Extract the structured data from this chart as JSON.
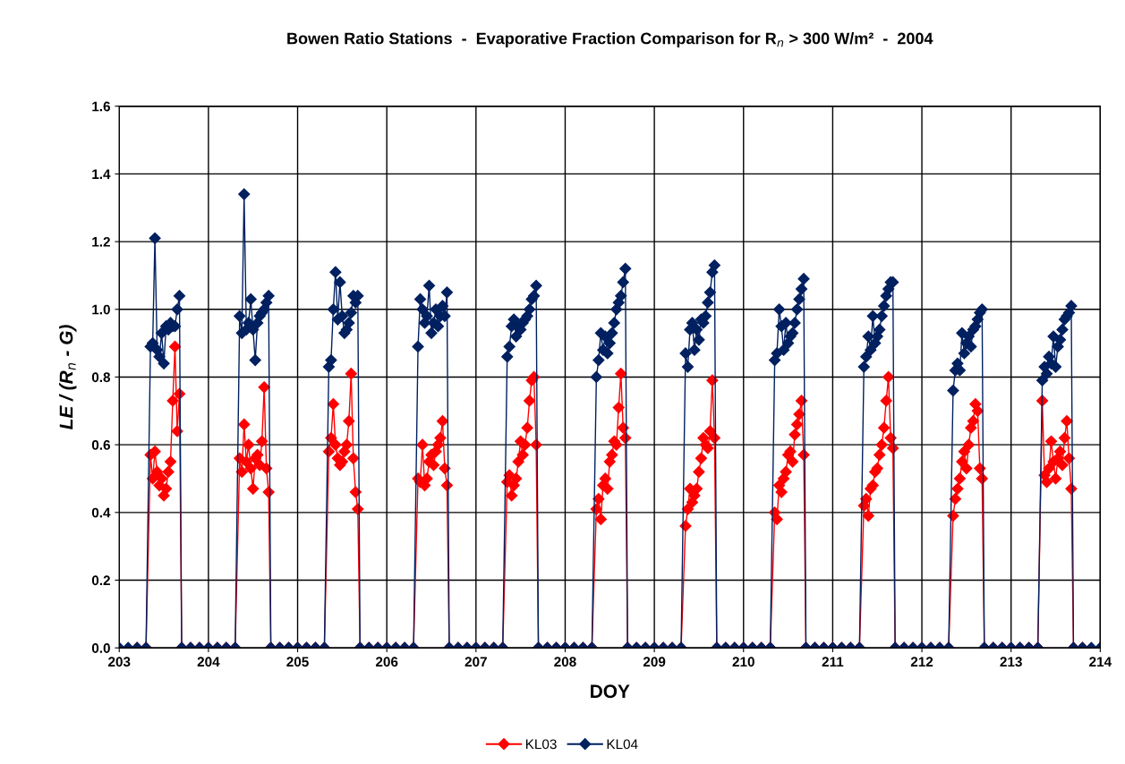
{
  "chart_data": {
    "type": "line",
    "title": "Bowen Ratio Stations  -  Evaporative Fraction Comparison for R$_{n}$ > 300 W/m²  -  2004",
    "xlabel": "DOY",
    "ylabel": "LE / (R$_{n}$ - G)",
    "x": [
      203.0,
      203.1,
      203.2,
      203.3,
      203.35,
      203.375,
      203.4,
      203.425,
      203.45,
      203.475,
      203.5,
      203.525,
      203.55,
      203.575,
      203.6,
      203.625,
      203.65,
      203.675,
      203.7,
      203.8,
      203.9,
      204.0,
      204.1,
      204.2,
      204.3,
      204.35,
      204.375,
      204.4,
      204.425,
      204.45,
      204.475,
      204.5,
      204.525,
      204.55,
      204.575,
      204.6,
      204.625,
      204.65,
      204.675,
      204.7,
      204.8,
      204.9,
      205.0,
      205.1,
      205.2,
      205.3,
      205.35,
      205.375,
      205.4,
      205.425,
      205.45,
      205.475,
      205.5,
      205.525,
      205.55,
      205.575,
      205.6,
      205.625,
      205.65,
      205.675,
      205.7,
      205.8,
      205.9,
      206.0,
      206.1,
      206.2,
      206.3,
      206.35,
      206.375,
      206.4,
      206.425,
      206.45,
      206.475,
      206.5,
      206.525,
      206.55,
      206.575,
      206.6,
      206.625,
      206.65,
      206.675,
      206.7,
      206.8,
      206.9,
      207.0,
      207.1,
      207.2,
      207.3,
      207.35,
      207.375,
      207.4,
      207.425,
      207.45,
      207.475,
      207.5,
      207.525,
      207.55,
      207.575,
      207.6,
      207.625,
      207.65,
      207.675,
      207.7,
      207.8,
      207.9,
      208.0,
      208.1,
      208.2,
      208.3,
      208.35,
      208.375,
      208.4,
      208.425,
      208.45,
      208.475,
      208.5,
      208.525,
      208.55,
      208.575,
      208.6,
      208.625,
      208.65,
      208.675,
      208.7,
      208.8,
      208.9,
      209.0,
      209.1,
      209.2,
      209.3,
      209.35,
      209.375,
      209.4,
      209.425,
      209.45,
      209.475,
      209.5,
      209.525,
      209.55,
      209.575,
      209.6,
      209.625,
      209.65,
      209.675,
      209.7,
      209.8,
      209.9,
      210.0,
      210.1,
      210.2,
      210.3,
      210.35,
      210.375,
      210.4,
      210.425,
      210.45,
      210.475,
      210.5,
      210.525,
      210.55,
      210.575,
      210.6,
      210.625,
      210.65,
      210.675,
      210.7,
      210.8,
      210.9,
      211.0,
      211.1,
      211.2,
      211.3,
      211.35,
      211.375,
      211.4,
      211.425,
      211.45,
      211.475,
      211.5,
      211.525,
      211.55,
      211.575,
      211.6,
      211.625,
      211.65,
      211.675,
      211.7,
      211.8,
      211.9,
      212.0,
      212.1,
      212.2,
      212.3,
      212.35,
      212.375,
      212.4,
      212.425,
      212.45,
      212.475,
      212.5,
      212.525,
      212.55,
      212.575,
      212.6,
      212.625,
      212.65,
      212.675,
      212.7,
      212.8,
      212.9,
      213.0,
      213.1,
      213.2,
      213.3,
      213.35,
      213.375,
      213.4,
      213.425,
      213.45,
      213.475,
      213.5,
      213.525,
      213.55,
      213.575,
      213.6,
      213.625,
      213.65,
      213.675,
      213.7,
      213.8,
      213.9,
      214.0
    ],
    "series": [
      {
        "name": "KL03",
        "color": "#ff0000",
        "values": [
          null,
          null,
          0,
          0,
          0.57,
          0.5,
          0.58,
          0.52,
          0.48,
          0.5,
          0.45,
          0.47,
          0.52,
          0.55,
          0.73,
          0.89,
          0.64,
          0.75,
          0,
          0,
          0,
          0,
          0,
          0,
          0,
          0.56,
          0.52,
          0.66,
          0.55,
          0.6,
          0.53,
          0.47,
          0.56,
          0.57,
          0.54,
          0.61,
          0.77,
          0.53,
          0.46,
          0,
          0,
          0,
          0,
          0,
          0,
          0,
          0.58,
          0.62,
          0.72,
          0.6,
          0.56,
          0.54,
          0.55,
          0.58,
          0.6,
          0.67,
          0.81,
          0.56,
          0.46,
          0.41,
          0,
          0,
          0,
          0,
          0,
          0,
          0,
          0.5,
          0.49,
          0.6,
          0.48,
          0.5,
          0.55,
          0.57,
          0.54,
          0.58,
          0.6,
          0.62,
          0.67,
          0.53,
          0.48,
          0,
          0,
          0,
          0,
          0,
          0,
          0,
          0.49,
          0.51,
          0.45,
          0.48,
          0.5,
          0.55,
          0.61,
          0.57,
          0.6,
          0.65,
          0.73,
          0.79,
          0.8,
          0.6,
          0,
          0,
          0,
          0,
          0,
          0,
          0,
          0.41,
          0.44,
          0.38,
          0.48,
          0.5,
          0.47,
          0.55,
          0.57,
          0.61,
          0.6,
          0.71,
          0.81,
          0.65,
          0.62,
          0,
          0,
          0,
          0,
          0,
          0,
          0,
          0.36,
          0.41,
          0.47,
          0.43,
          0.45,
          0.47,
          0.52,
          0.56,
          0.62,
          0.6,
          0.59,
          0.64,
          0.79,
          0.62,
          0,
          0,
          0,
          0,
          0,
          0,
          0,
          0.4,
          0.38,
          0.48,
          0.46,
          0.5,
          0.52,
          0.57,
          0.58,
          0.55,
          0.63,
          0.66,
          0.69,
          0.73,
          0.57,
          0,
          0,
          0,
          0,
          0,
          0,
          0,
          0.42,
          0.44,
          0.39,
          0.47,
          0.48,
          0.52,
          0.53,
          0.57,
          0.6,
          0.65,
          0.73,
          0.8,
          0.62,
          0.59,
          0,
          0,
          0,
          0,
          0,
          0,
          0,
          0.39,
          0.44,
          0.47,
          0.5,
          0.55,
          0.58,
          0.53,
          0.6,
          0.65,
          0.67,
          0.72,
          0.7,
          0.53,
          0.5,
          0,
          0,
          0,
          0,
          0,
          0,
          0,
          0.73,
          0.51,
          0.49,
          0.53,
          0.61,
          0.55,
          0.5,
          0.56,
          0.58,
          0.54,
          0.62,
          0.67,
          0.56,
          0.47,
          0,
          0,
          null,
          null
        ]
      },
      {
        "name": "KL04",
        "color": "#002060",
        "values": [
          0,
          0,
          0,
          0,
          0.89,
          0.9,
          1.21,
          0.88,
          0.86,
          0.93,
          0.84,
          0.95,
          0.94,
          0.96,
          0.95,
          0.95,
          1.0,
          1.04,
          0,
          0,
          0,
          0,
          0,
          0,
          0,
          0.98,
          0.93,
          1.34,
          0.94,
          0.96,
          1.03,
          0.94,
          0.85,
          0.96,
          0.98,
          0.99,
          1.0,
          1.02,
          1.04,
          0,
          0,
          0,
          0,
          0,
          0,
          0,
          0.83,
          0.85,
          1.0,
          1.11,
          0.97,
          1.08,
          0.98,
          0.93,
          0.94,
          0.96,
          0.99,
          1.04,
          1.02,
          1.04,
          0,
          0,
          0,
          0,
          0,
          0,
          0,
          0.89,
          1.03,
          1.0,
          0.96,
          0.98,
          1.07,
          0.93,
          0.96,
          1.0,
          0.95,
          0.98,
          1.01,
          0.98,
          1.05,
          0,
          0,
          0,
          0,
          0,
          0,
          0,
          0.86,
          0.89,
          0.95,
          0.97,
          0.92,
          0.95,
          0.94,
          0.96,
          0.97,
          0.98,
          1.0,
          1.03,
          1.04,
          1.07,
          0,
          0,
          0,
          0,
          0,
          0,
          0,
          0.8,
          0.85,
          0.93,
          0.88,
          0.92,
          0.87,
          0.9,
          0.93,
          0.96,
          1.0,
          1.02,
          1.04,
          1.08,
          1.12,
          0,
          0,
          0,
          0,
          0,
          0,
          0,
          0.87,
          0.83,
          0.94,
          0.96,
          0.88,
          0.94,
          0.91,
          0.97,
          0.96,
          0.98,
          1.02,
          1.05,
          1.11,
          1.13,
          0,
          0,
          0,
          0,
          0,
          0,
          0,
          0.85,
          0.87,
          1.0,
          0.95,
          0.88,
          0.96,
          0.9,
          0.92,
          0.93,
          0.96,
          1.0,
          1.03,
          1.06,
          1.09,
          0,
          0,
          0,
          0,
          0,
          0,
          0,
          0.83,
          0.86,
          0.92,
          0.88,
          0.98,
          0.9,
          0.92,
          0.94,
          0.98,
          1.01,
          1.04,
          1.06,
          1.08,
          1.08,
          0,
          0,
          0,
          0,
          0,
          0,
          0,
          0.76,
          0.82,
          0.84,
          0.82,
          0.93,
          0.87,
          0.9,
          0.92,
          0.89,
          0.94,
          0.95,
          0.97,
          0.99,
          1.0,
          0,
          0,
          0,
          0,
          0,
          0,
          0,
          0.79,
          0.83,
          0.81,
          0.86,
          0.84,
          0.92,
          0.83,
          0.89,
          0.91,
          0.94,
          0.97,
          0.98,
          0.99,
          1.01,
          0,
          0,
          0,
          0
        ]
      }
    ],
    "xlim": [
      203,
      214
    ],
    "xticks": [
      203,
      204,
      205,
      206,
      207,
      208,
      209,
      210,
      211,
      212,
      213,
      214
    ],
    "ylim": [
      0,
      1.6
    ],
    "yticks": [
      {
        "value": 0,
        "label": "0.0"
      },
      {
        "value": 0.2,
        "label": "0.2"
      },
      {
        "value": 0.4,
        "label": "0.4"
      },
      {
        "value": 0.6,
        "label": "0.6"
      },
      {
        "value": 0.8,
        "label": "0.8"
      },
      {
        "value": 1.0,
        "label": "1.0"
      },
      {
        "value": 1.2,
        "label": "1.2"
      },
      {
        "value": 1.4,
        "label": "1.4"
      },
      {
        "value": 1.6,
        "label": "1.6"
      }
    ],
    "grid": true,
    "legend": "bottom",
    "marker": "diamond",
    "line_style": "solid"
  }
}
